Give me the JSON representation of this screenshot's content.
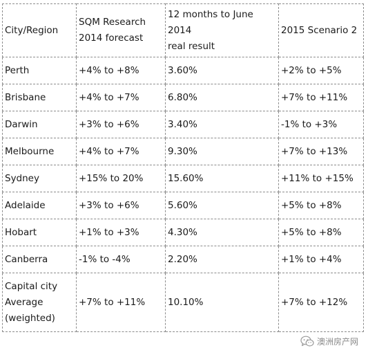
{
  "table": {
    "header": {
      "col1": "City/Region",
      "col2": [
        "SQM Research",
        "2014 forecast"
      ],
      "col3": [
        "12 months to June 2014",
        "real result"
      ],
      "col4": "2015 Scenario 2"
    },
    "rows": [
      {
        "city": "Perth",
        "forecast": "+4% to +8%",
        "result": "3.60%",
        "scenario": "+2% to +5%"
      },
      {
        "city": "Brisbane",
        "forecast": "+4% to +7%",
        "result": "6.80%",
        "scenario": "+7% to +11%"
      },
      {
        "city": "Darwin",
        "forecast": "+3% to +6%",
        "result": "3.40%",
        "scenario": "-1% to +3%"
      },
      {
        "city": "Melbourne",
        "forecast": "+4% to +7%",
        "result": "9.30%",
        "scenario": "+7% to +13%"
      },
      {
        "city": "Sydney",
        "forecast": "+15% to 20%",
        "result": "15.60%",
        "scenario": "+11% to +15%"
      },
      {
        "city": "Adelaide",
        "forecast": "+3% to +6%",
        "result": "5.60%",
        "scenario": "+5% to +8%"
      },
      {
        "city": "Hobart",
        "forecast": "+1% to +3%",
        "result": "4.30%",
        "scenario": "+5% to +8%"
      },
      {
        "city": "Canberra",
        "forecast": "-1% to -4%",
        "result": "2.20%",
        "scenario": "+1% to +4%"
      }
    ],
    "last_row": {
      "city": [
        "Capital city",
        "Average",
        "(weighted)"
      ],
      "forecast": "+7% to +11%",
      "result": "10.10%",
      "scenario": "+7% to +12%"
    }
  },
  "watermark": {
    "text": "澳洲房产网",
    "icon": "wechat-icon"
  }
}
